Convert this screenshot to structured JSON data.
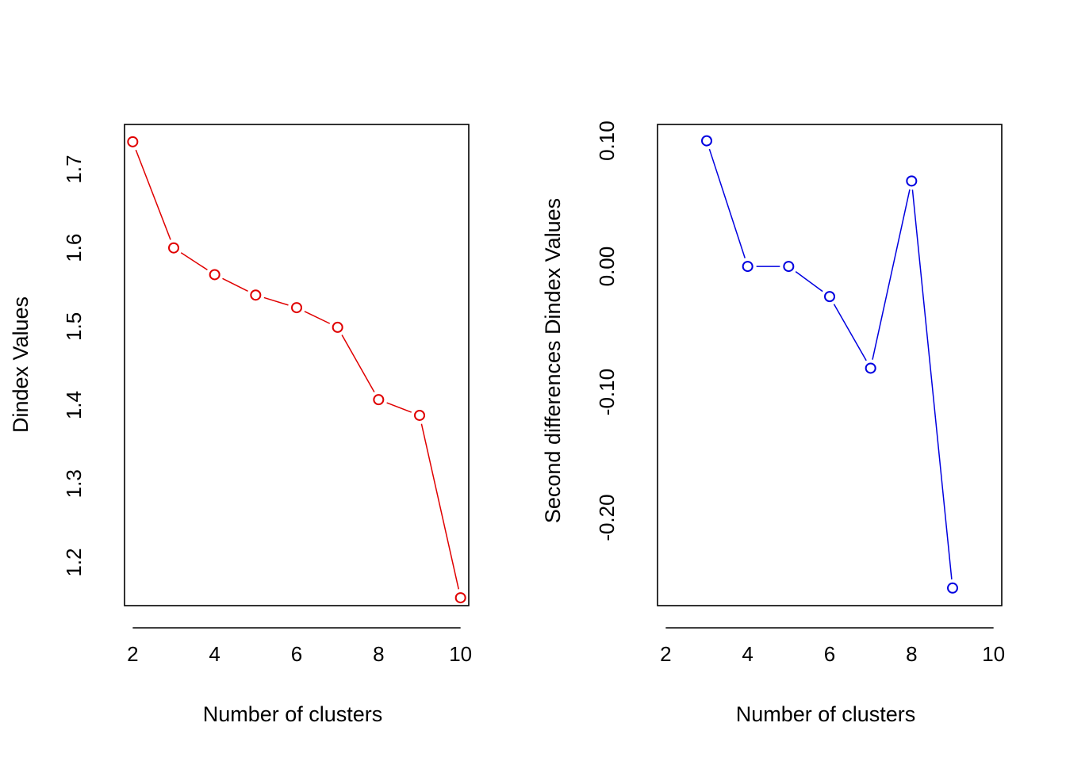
{
  "chart_data": [
    {
      "type": "line",
      "title": "",
      "xlabel": "Number of clusters",
      "ylabel": "Dindex Values",
      "x": [
        2,
        3,
        4,
        5,
        6,
        7,
        8,
        9,
        10
      ],
      "series": [
        {
          "color": "#e00000",
          "values": [
            1.735,
            1.6,
            1.566,
            1.54,
            1.524,
            1.499,
            1.407,
            1.387,
            1.155
          ]
        }
      ],
      "xlim": [
        1.8,
        10.2
      ],
      "ylim": [
        1.145,
        1.757
      ],
      "xticks": [
        "2",
        "4",
        "6",
        "8",
        "10"
      ],
      "xtick_values": [
        2,
        4,
        6,
        8,
        10
      ],
      "yticks": [
        "1.2",
        "1.3",
        "1.4",
        "1.5",
        "1.6",
        "1.7"
      ],
      "ytick_values": [
        1.2,
        1.3,
        1.4,
        1.5,
        1.6,
        1.7
      ],
      "marker": "open-circle",
      "grid": false
    },
    {
      "type": "line",
      "title": "",
      "xlabel": "Number of clusters",
      "ylabel": "Second differences Dindex Values",
      "x": [
        3,
        4,
        5,
        6,
        7,
        8,
        9
      ],
      "series": [
        {
          "color": "#0000e0",
          "values": [
            0.1,
            0.0,
            0.0,
            -0.024,
            -0.081,
            0.068,
            -0.256
          ]
        }
      ],
      "xlim": [
        1.8,
        10.2
      ],
      "ylim": [
        -0.27,
        0.113
      ],
      "xticks": [
        "2",
        "4",
        "6",
        "8",
        "10"
      ],
      "xtick_values": [
        2,
        4,
        6,
        8,
        10
      ],
      "yticks": [
        "-0.20",
        "-0.10",
        "0.00",
        "0.10"
      ],
      "ytick_values": [
        -0.2,
        -0.1,
        0.0,
        0.1
      ],
      "marker": "open-circle",
      "grid": false
    }
  ]
}
